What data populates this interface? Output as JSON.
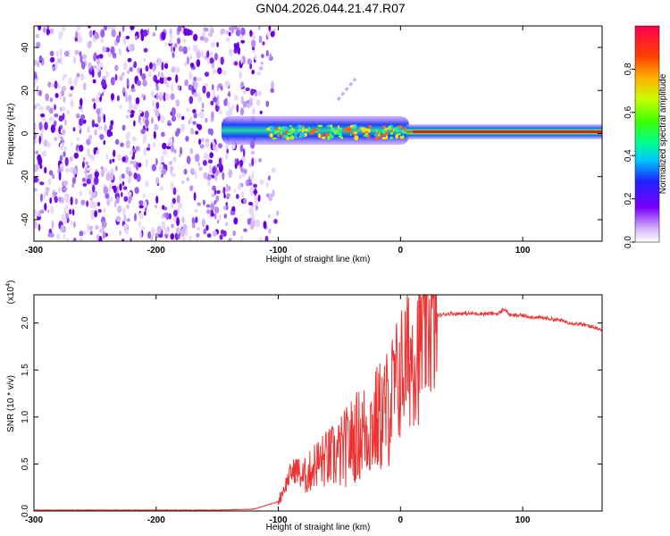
{
  "title": "GN04.2026.044.21.47.R07",
  "colors": {
    "red": "#ee3333",
    "frame": "#000000"
  },
  "chart_data": [
    {
      "type": "heatmap",
      "xlabel": "Height of straight line (km)",
      "ylabel": "Frequency (Hz)",
      "xlim": [
        -300,
        165
      ],
      "ylim": [
        -50,
        50
      ],
      "x_ticks": [
        -300,
        -200,
        -100,
        0,
        100
      ],
      "y_ticks": [
        -40,
        -20,
        0,
        20,
        40
      ],
      "colorbar": {
        "label": "Normalized spectral amplitude",
        "range": [
          0,
          1
        ],
        "ticks": [
          "0.0",
          "0.2",
          "0.4",
          "0.6",
          "0.8"
        ],
        "colormap": "rainbow (white-purple-blue-cyan-green-yellow-red)"
      },
      "description_regions": [
        {
          "x_range": [
            -300,
            -120
          ],
          "frequency_range": [
            -50,
            50
          ],
          "amplitude": "low, noise (purple speckle)"
        },
        {
          "x_range": [
            -130,
            10
          ],
          "frequency_range": [
            -10,
            5
          ],
          "amplitude": "medium (blue/cyan/green band)"
        },
        {
          "x_range": [
            10,
            165
          ],
          "frequency_range": [
            -2,
            2
          ],
          "amplitude": "high (red line at ~0 Hz)"
        }
      ]
    },
    {
      "type": "line",
      "xlabel": "Height of straight line (km)",
      "ylabel": "SNR (10 * v/v)",
      "y_multiplier": "(x10^4)",
      "xlim": [
        -300,
        165
      ],
      "ylim": [
        0,
        2.3
      ],
      "x_ticks": [
        -300,
        -200,
        -100,
        0,
        100
      ],
      "y_ticks": [
        "0.0",
        "0.5",
        "1.0",
        "1.5",
        "2.0"
      ],
      "series": [
        {
          "x": [
            -300,
            -250,
            -200,
            -150,
            -120,
            -100,
            -95,
            -90,
            -85,
            -80,
            -75,
            -70,
            -60,
            -50,
            -40,
            -30,
            -20,
            -10,
            -5,
            0,
            5,
            10,
            15,
            20,
            25,
            30,
            40,
            50,
            60,
            70,
            80,
            85,
            90,
            100,
            110,
            120,
            130,
            140,
            150,
            160,
            165
          ],
          "y": [
            0.01,
            0.01,
            0.01,
            0.01,
            0.02,
            0.1,
            0.25,
            0.4,
            0.45,
            0.35,
            0.4,
            0.5,
            0.55,
            0.6,
            0.75,
            0.85,
            0.95,
            1.1,
            1.3,
            1.45,
            1.6,
            1.7,
            1.75,
            1.95,
            2.05,
            2.08,
            2.1,
            2.1,
            2.1,
            2.1,
            2.1,
            2.15,
            2.08,
            2.08,
            2.06,
            2.05,
            2.03,
            2.0,
            1.98,
            1.95,
            1.93
          ]
        }
      ]
    }
  ]
}
